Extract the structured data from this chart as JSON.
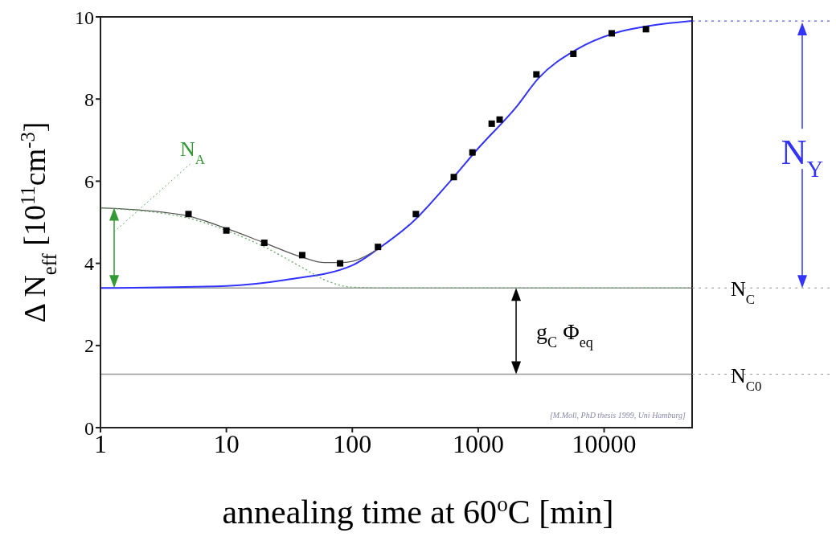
{
  "chart_data": {
    "type": "scatter",
    "xlabel": "annealing time at 60$^{o}$C [min]",
    "ylabel": "Δ N$_{eff}$ [10$^{11}$cm$^{-3}$]",
    "log": "x",
    "xlim": [
      1,
      50000
    ],
    "xticks": [
      1,
      10,
      100,
      1000,
      10000
    ],
    "ylim": [
      0,
      10
    ],
    "yticks": [
      0,
      2,
      4,
      6,
      8,
      10
    ],
    "series": [
      {
        "marker": "square",
        "color": "#000000",
        "x": [
          5,
          10,
          20,
          40,
          80,
          160,
          320,
          640,
          900,
          1280,
          1480,
          2900,
          5700,
          11500,
          21500
        ],
        "values": [
          5.2,
          4.8,
          4.5,
          4.2,
          4.0,
          4.4,
          5.2,
          6.1,
          6.7,
          7.4,
          7.5,
          8.6,
          9.1,
          9.6,
          9.7
        ]
      },
      {
        "type": "line",
        "marker": "none",
        "line_style": "solid",
        "color": "#3333ff",
        "x": [
          1,
          10,
          30,
          100,
          160,
          300,
          600,
          1000,
          2000,
          3000,
          6000,
          12000,
          20000,
          50000
        ],
        "values": [
          3.4,
          3.45,
          3.6,
          3.95,
          4.35,
          5.0,
          6.0,
          6.8,
          7.8,
          8.5,
          9.2,
          9.6,
          9.75,
          9.9
        ]
      },
      {
        "type": "line",
        "marker": "none",
        "line_style": "solid",
        "color": "#555555",
        "x": [
          1,
          3,
          5,
          10,
          20,
          40,
          60,
          80,
          100,
          160
        ],
        "values": [
          5.35,
          5.25,
          5.15,
          4.85,
          4.5,
          4.15,
          4.02,
          4.02,
          4.05,
          4.35
        ]
      },
      {
        "type": "line",
        "marker": "none",
        "line_style": "dotted",
        "color": "#66aa66",
        "x": [
          1,
          5,
          10,
          20,
          40,
          60,
          100,
          200,
          50000
        ],
        "values": [
          5.35,
          5.1,
          4.8,
          4.4,
          3.9,
          3.6,
          3.42,
          3.4,
          3.4
        ]
      }
    ],
    "ref_lines": [
      {
        "axis": "y",
        "value": 3.4,
        "label": "N$_{C}$",
        "color": "#999999"
      },
      {
        "axis": "y",
        "value": 1.3,
        "label": "N$_{C0}$",
        "color": "#999999"
      }
    ],
    "annotations": [
      "N$_{A}$",
      {
        "text": "g$_{C}$ Φ$_{eq}$",
        "x": 2000,
        "y": 3.4
      },
      "N$_{Y}$",
      "[M.Moll, PhD thesis 1999, Uni Hamburg]"
    ]
  }
}
